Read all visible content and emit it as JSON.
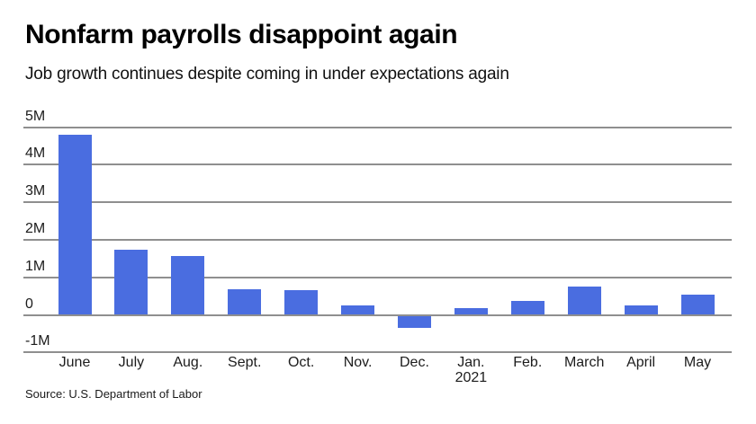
{
  "header": {
    "title": "Nonfarm payrolls disappoint again",
    "subtitle": "Job growth continues despite coming in under expectations again"
  },
  "chart_data": {
    "type": "bar",
    "title": "Nonfarm payrolls disappoint again",
    "subtitle": "Job growth continues despite coming in under expectations again",
    "categories": [
      "June",
      "July",
      "Aug.",
      "Sept.",
      "Oct.",
      "Nov.",
      "Dec.",
      "Jan.",
      "Feb.",
      "March",
      "April",
      "May"
    ],
    "category_sublabels": [
      "",
      "",
      "",
      "",
      "",
      "",
      "",
      "2021",
      "",
      "",
      "",
      ""
    ],
    "values": [
      4.8,
      1.73,
      1.57,
      0.68,
      0.65,
      0.26,
      -0.32,
      0.18,
      0.37,
      0.75,
      0.25,
      0.54
    ],
    "unit": "millions of jobs",
    "y_ticks": [
      "5M",
      "4M",
      "3M",
      "2M",
      "1M",
      "0",
      "-1M"
    ],
    "y_tick_values": [
      5,
      4,
      3,
      2,
      1,
      0,
      -1
    ],
    "ylim": [
      -1,
      5
    ],
    "grid": true,
    "legend": false,
    "bar_color": "#4a6de0",
    "gridline_color": "#8f8f8f",
    "text_color": "#1c1c1c"
  },
  "footer": {
    "source": "Source: U.S. Department of Labor"
  }
}
